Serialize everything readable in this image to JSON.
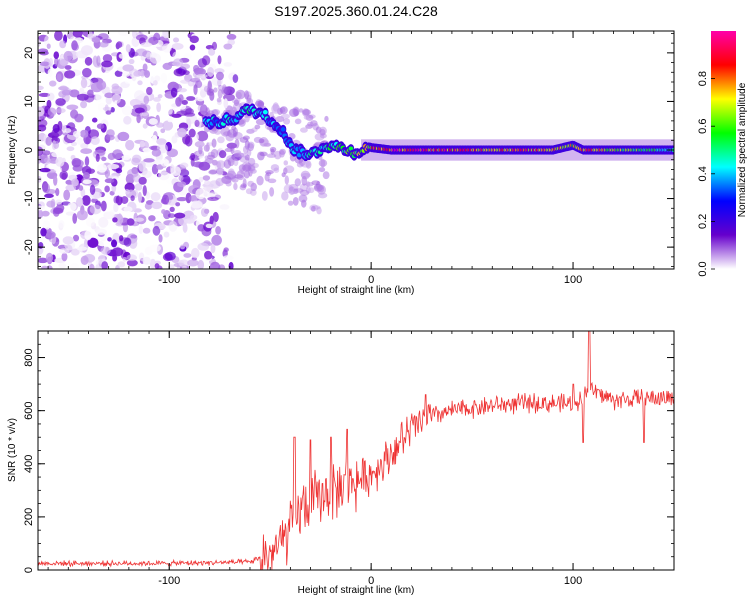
{
  "title": "S197.2025.360.01.24.C28",
  "chart_data": [
    {
      "type": "heatmap",
      "name": "spectrogram",
      "xlabel": "Height of straight line (km)",
      "ylabel": "Frequency (Hz)",
      "xlim": [
        -165,
        150
      ],
      "ylim": [
        -24.5,
        24.5
      ],
      "x_ticks": [
        -100,
        0,
        100
      ],
      "x_tick_labels": [
        "-100",
        "0",
        "100"
      ],
      "y_ticks": [
        20,
        10,
        0,
        -10,
        -20
      ],
      "y_tick_labels": [
        "20",
        "10",
        "0",
        "-10",
        "-20"
      ],
      "colorbar": {
        "label": "Normalized spectral amplitude",
        "range": [
          0,
          1
        ],
        "ticks": [
          0.0,
          0.2,
          0.4,
          0.6,
          0.8
        ],
        "tick_labels": [
          "0.0",
          "0.2",
          "0.4",
          "0.6",
          "0.8"
        ],
        "colormap": [
          "#ffffff",
          "#6600cc",
          "#0000ff",
          "#00ffff",
          "#00ff00",
          "#ffff00",
          "#ff0000",
          "#ff00aa"
        ]
      },
      "noise_region_x": [
        -165,
        -78
      ],
      "signal_track": {
        "x": [
          -82,
          -75,
          -68,
          -60,
          -52,
          -45,
          -38,
          -30,
          -22,
          -15,
          -8,
          0,
          10,
          40,
          60,
          75,
          90,
          100,
          105,
          130,
          150
        ],
        "frequency": [
          5.5,
          5.8,
          6.5,
          8.5,
          7.0,
          4.5,
          0.0,
          -1.0,
          1.0,
          0.5,
          -0.5,
          0.5,
          0.0,
          0.0,
          0.0,
          0.0,
          0.0,
          1.0,
          0.0,
          0.0,
          0.0
        ],
        "amplitude": [
          0.4,
          0.4,
          0.45,
          0.5,
          0.45,
          0.35,
          0.4,
          0.45,
          0.5,
          0.55,
          0.6,
          0.75,
          0.9,
          0.85,
          0.8,
          0.82,
          0.8,
          0.7,
          0.85,
          0.6,
          0.45
        ]
      }
    },
    {
      "type": "line",
      "name": "snr",
      "xlabel": "Height of straight line (km)",
      "ylabel": "SNR (10 * v/v)",
      "xlim": [
        -165,
        150
      ],
      "ylim": [
        0,
        900
      ],
      "x_ticks": [
        -100,
        0,
        100
      ],
      "x_tick_labels": [
        "-100",
        "0",
        "100"
      ],
      "y_ticks": [
        0,
        200,
        400,
        600,
        800
      ],
      "y_tick_labels": [
        "0",
        "200",
        "400",
        "600",
        "800"
      ],
      "color": "#ee3333",
      "trend": {
        "x": [
          -165,
          -100,
          -60,
          -50,
          -42,
          -35,
          -25,
          -15,
          0,
          10,
          20,
          30,
          40,
          60,
          80,
          100,
          108,
          120,
          150
        ],
        "y": [
          25,
          25,
          30,
          60,
          120,
          230,
          280,
          310,
          360,
          440,
          530,
          580,
          600,
          620,
          630,
          625,
          680,
          640,
          650
        ]
      },
      "spikes": [
        {
          "x": -38,
          "y": 500
        },
        {
          "x": -30,
          "y": 490
        },
        {
          "x": -20,
          "y": 500
        },
        {
          "x": -12,
          "y": 530
        },
        {
          "x": 27,
          "y": 660
        },
        {
          "x": 100,
          "y": 700
        },
        {
          "x": 105,
          "y": 480
        },
        {
          "x": 108,
          "y": 900
        },
        {
          "x": 135,
          "y": 480
        }
      ]
    }
  ]
}
